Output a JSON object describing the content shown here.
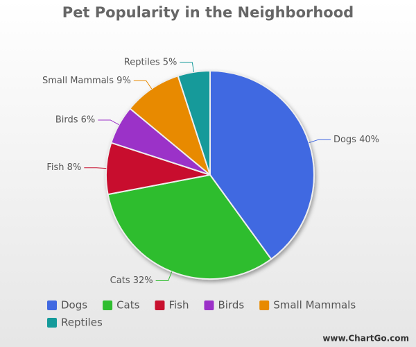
{
  "chart_data": {
    "type": "pie",
    "title": "Pet Popularity in the Neighborhood",
    "categories": [
      "Dogs",
      "Cats",
      "Fish",
      "Birds",
      "Small Mammals",
      "Reptiles"
    ],
    "values": [
      40,
      32,
      8,
      6,
      9,
      5
    ],
    "value_labels": [
      "Dogs 40%",
      "Cats 32%",
      "Fish 8%",
      "Birds 6%",
      "Small Mammals 9%",
      "Reptiles 5%"
    ],
    "colors": [
      "#4169e1",
      "#2fbd2f",
      "#c8102e",
      "#9b30c8",
      "#e88a00",
      "#149a9a"
    ],
    "legend": "bottom",
    "watermark": "www.ChartGo.com"
  }
}
